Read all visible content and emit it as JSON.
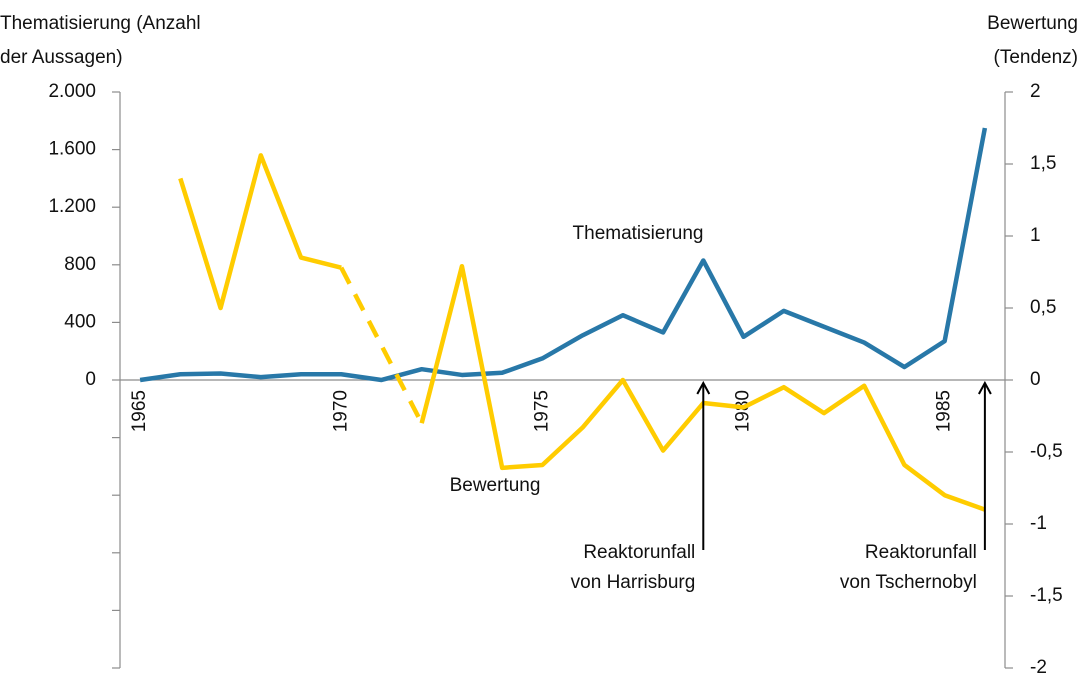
{
  "chart_data": {
    "type": "line",
    "y_title": [
      "Thematisierung (Anzahl",
      "der Aussagen)"
    ],
    "y2_title": [
      "Bewertung",
      "(Tendenz)"
    ],
    "x": [
      1965,
      1966,
      1967,
      1968,
      1969,
      1970,
      1971,
      1972,
      1973,
      1974,
      1975,
      1976,
      1977,
      1978,
      1979,
      1980,
      1981,
      1982,
      1983,
      1984,
      1985,
      1986
    ],
    "xlim": [
      1964.5,
      1986.5
    ],
    "xticks": [
      1965,
      1970,
      1975,
      1980,
      1985
    ],
    "ylim": [
      -2000,
      2000
    ],
    "yticks": [
      0,
      400,
      800,
      {
        "value": 1200,
        "label": "1.200"
      },
      {
        "value": 1600,
        "label": "1.600"
      },
      {
        "value": 2000,
        "label": "2.000"
      }
    ],
    "yticks_unlabeled": [
      -400,
      -800,
      -1200,
      -1600,
      -2000
    ],
    "y2lim": [
      -2,
      2
    ],
    "y2ticks": [
      -2,
      {
        "value": -1.5,
        "label": "-1,5"
      },
      -1,
      {
        "value": -0.5,
        "label": "-0,5"
      },
      0,
      {
        "value": 0.5,
        "label": "0,5"
      },
      1,
      {
        "value": 1.5,
        "label": "1,5"
      },
      2
    ],
    "gap_style": "dashed",
    "series": [
      {
        "name": "Thematisierung",
        "color": "#2878a8",
        "values": [
          0,
          40,
          45,
          20,
          40,
          40,
          0,
          75,
          35,
          50,
          150,
          310,
          450,
          330,
          830,
          300,
          480,
          370,
          260,
          90,
          270,
          1750
        ]
      },
      {
        "name": "Bewertung",
        "color": "#ffcc00",
        "axis": "y2",
        "values": [
          null,
          1.4,
          0.5,
          1.56,
          0.85,
          0.78,
          null,
          -0.3,
          0.79,
          -0.61,
          -0.59,
          -0.33,
          0,
          -0.49,
          -0.16,
          -0.19,
          -0.05,
          -0.23,
          -0.04,
          -0.59,
          -0.8,
          -0.9
        ]
      }
    ],
    "annotations": [
      {
        "lines": [
          "Reaktorunfall",
          "von Harrisburg"
        ],
        "x": 1979
      },
      {
        "lines": [
          "Reaktorunfall",
          "von Tschernobyl"
        ],
        "x": 1986
      }
    ]
  }
}
